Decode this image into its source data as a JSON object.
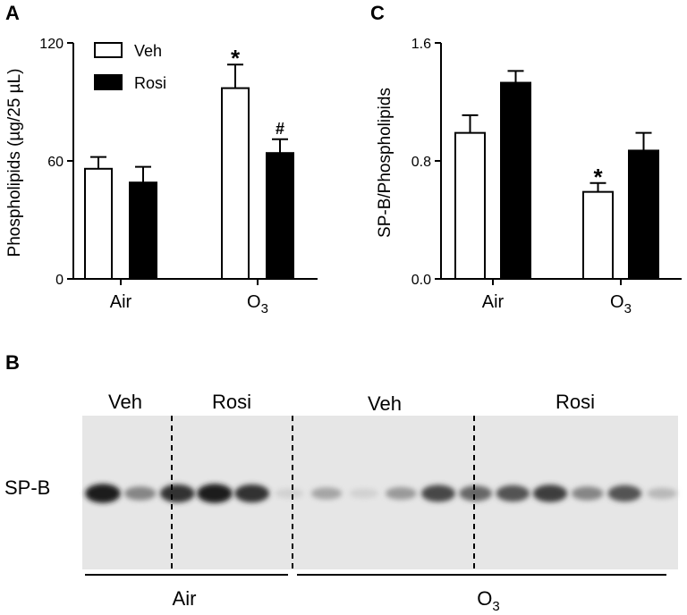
{
  "panels": {
    "a": "A",
    "b": "B",
    "c": "C"
  },
  "chart_data": [
    {
      "type": "bar",
      "panel": "A",
      "ylabel": "Phospholipids (µg/25 µL)",
      "xlabel": "",
      "ylim": [
        0,
        120
      ],
      "yticks": [
        "0",
        "60",
        "120"
      ],
      "categories": [
        "Air",
        "O3"
      ],
      "category_labels": [
        {
          "base": "Air",
          "sub": ""
        },
        {
          "base": "O",
          "sub": "3"
        }
      ],
      "legend": {
        "position": "top-left",
        "entries": [
          "Veh",
          "Rosi"
        ]
      },
      "series": [
        {
          "name": "Veh",
          "fill": "#ffffff",
          "values": [
            56,
            97
          ],
          "errors": [
            6,
            12
          ]
        },
        {
          "name": "Rosi",
          "fill": "#000000",
          "values": [
            49,
            64
          ],
          "errors": [
            8,
            7
          ]
        }
      ],
      "annotations": [
        {
          "text": "*",
          "series": 0,
          "category": 1
        },
        {
          "text": "#",
          "series": 1,
          "category": 1
        }
      ]
    },
    {
      "type": "bar",
      "panel": "C",
      "ylabel": "SP-B/Phospholipids",
      "xlabel": "",
      "ylim": [
        0,
        1.6
      ],
      "yticks": [
        "0.0",
        "0.8",
        "1.6"
      ],
      "categories": [
        "Air",
        "O3"
      ],
      "category_labels": [
        {
          "base": "Air",
          "sub": ""
        },
        {
          "base": "O",
          "sub": "3"
        }
      ],
      "series": [
        {
          "name": "Veh",
          "fill": "#ffffff",
          "values": [
            0.99,
            0.59
          ],
          "errors": [
            0.12,
            0.06
          ]
        },
        {
          "name": "Rosi",
          "fill": "#000000",
          "values": [
            1.33,
            0.87
          ],
          "errors": [
            0.08,
            0.12
          ]
        }
      ],
      "annotations": [
        {
          "text": "*",
          "series": 0,
          "category": 1
        }
      ]
    }
  ],
  "blot": {
    "row_label": "SP-B",
    "group_labels": [
      "Veh",
      "Rosi",
      "Veh",
      "Rosi"
    ],
    "bottom_labels": [
      {
        "base": "Air",
        "sub": ""
      },
      {
        "base": "O",
        "sub": "3"
      }
    ],
    "background": "#e6e6e6",
    "lanes": [
      0.95,
      0.45,
      0.85,
      0.95,
      0.85,
      0.08,
      0.3,
      0.08,
      0.35,
      0.75,
      0.6,
      0.7,
      0.8,
      0.45,
      0.7,
      0.2
    ]
  }
}
